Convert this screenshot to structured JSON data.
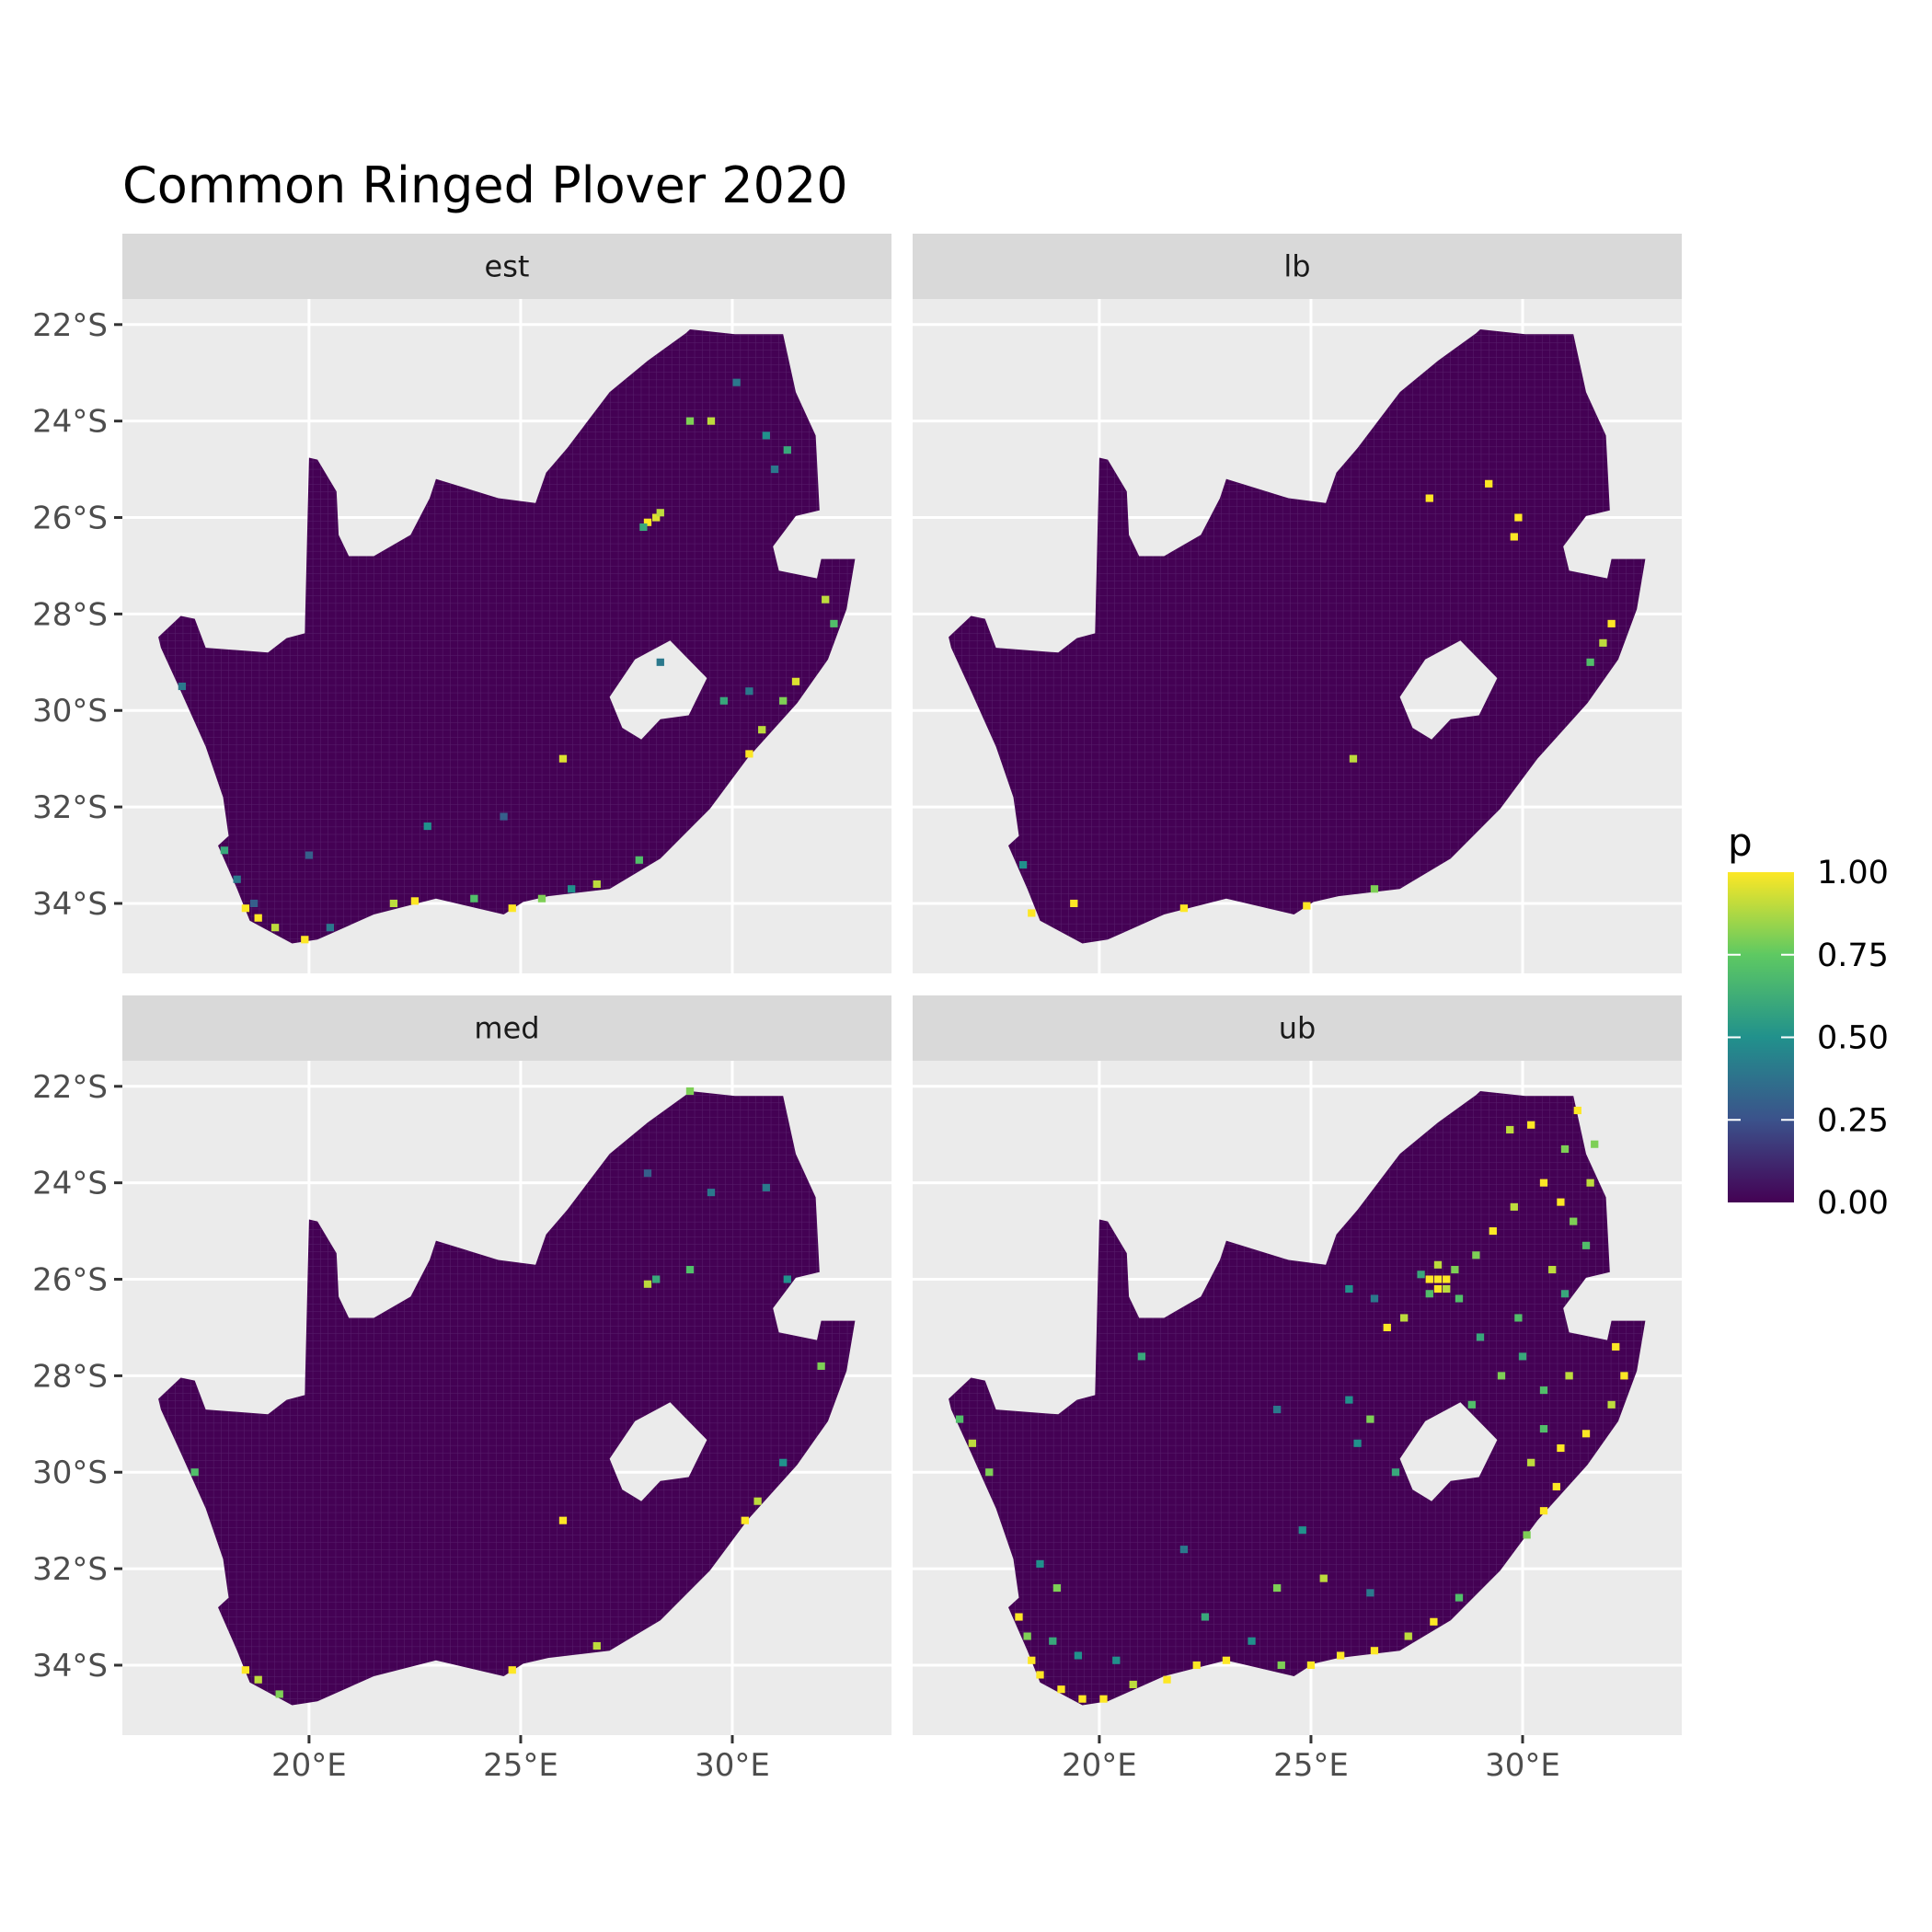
{
  "chart_data": {
    "type": "heatmap",
    "title": "Common Ringed Plover 2020",
    "xlabel": "",
    "ylabel": "",
    "xlim": [
      15.59,
      33.76
    ],
    "ylim": [
      -35.45,
      -21.47
    ],
    "grid": true,
    "x_ticks": [
      {
        "value": 20,
        "label": "20°E"
      },
      {
        "value": 25,
        "label": "25°E"
      },
      {
        "value": 30,
        "label": "30°E"
      }
    ],
    "y_ticks": [
      {
        "value": -22,
        "label": "22°S"
      },
      {
        "value": -24,
        "label": "24°S"
      },
      {
        "value": -26,
        "label": "26°S"
      },
      {
        "value": -28,
        "label": "28°S"
      },
      {
        "value": -30,
        "label": "30°S"
      },
      {
        "value": -32,
        "label": "32°S"
      },
      {
        "value": -34,
        "label": "34°S"
      }
    ],
    "legend": {
      "title": "p",
      "placement": "right",
      "colormap": "viridis",
      "colors": [
        "#440154",
        "#3b528b",
        "#21918c",
        "#5ec962",
        "#fde725"
      ],
      "range": [
        0,
        1
      ],
      "ticks": [
        {
          "value": 1,
          "label": "1.00"
        },
        {
          "value": 0.75,
          "label": "0.75"
        },
        {
          "value": 0.5,
          "label": "0.50"
        },
        {
          "value": 0.25,
          "label": "0.25"
        },
        {
          "value": 0,
          "label": "0.00"
        }
      ]
    },
    "background_value": 0,
    "region_outline": [
      [
        16.44,
        -28.48
      ],
      [
        16.97,
        -28.04
      ],
      [
        17.3,
        -28.1
      ],
      [
        17.56,
        -28.7
      ],
      [
        19.03,
        -28.8
      ],
      [
        19.47,
        -28.5
      ],
      [
        19.9,
        -28.4
      ],
      [
        20.0,
        -24.76
      ],
      [
        20.2,
        -24.8
      ],
      [
        20.65,
        -25.46
      ],
      [
        20.7,
        -26.36
      ],
      [
        20.94,
        -26.8
      ],
      [
        21.53,
        -26.8
      ],
      [
        22.4,
        -26.36
      ],
      [
        22.85,
        -25.6
      ],
      [
        23.0,
        -25.2
      ],
      [
        24.47,
        -25.6
      ],
      [
        25.35,
        -25.7
      ],
      [
        25.6,
        -25.07
      ],
      [
        26.1,
        -24.56
      ],
      [
        27.1,
        -23.4
      ],
      [
        28.0,
        -22.75
      ],
      [
        28.9,
        -22.18
      ],
      [
        29.0,
        -22.1
      ],
      [
        30.06,
        -22.2
      ],
      [
        31.2,
        -22.2
      ],
      [
        31.5,
        -23.4
      ],
      [
        31.97,
        -24.3
      ],
      [
        32.06,
        -25.85
      ],
      [
        31.5,
        -25.97
      ],
      [
        30.96,
        -26.6
      ],
      [
        31.1,
        -27.1
      ],
      [
        32.0,
        -27.26
      ],
      [
        32.1,
        -26.86
      ],
      [
        32.9,
        -26.86
      ],
      [
        32.7,
        -27.9
      ],
      [
        32.26,
        -28.94
      ],
      [
        31.53,
        -29.85
      ],
      [
        30.35,
        -31.0
      ],
      [
        29.47,
        -32.04
      ],
      [
        28.3,
        -33.07
      ],
      [
        27.1,
        -33.7
      ],
      [
        25.65,
        -33.85
      ],
      [
        25.06,
        -33.97
      ],
      [
        24.6,
        -34.23
      ],
      [
        23.0,
        -33.9
      ],
      [
        21.53,
        -34.23
      ],
      [
        20.2,
        -34.75
      ],
      [
        19.6,
        -34.83
      ],
      [
        18.6,
        -34.36
      ],
      [
        18.3,
        -33.7
      ],
      [
        17.85,
        -32.8
      ],
      [
        18.1,
        -32.6
      ],
      [
        17.97,
        -31.8
      ],
      [
        17.56,
        -30.75
      ],
      [
        16.97,
        -29.6
      ],
      [
        16.5,
        -28.7
      ]
    ],
    "region_hole": [
      [
        27.1,
        -29.72
      ],
      [
        27.7,
        -28.94
      ],
      [
        28.53,
        -28.55
      ],
      [
        29.4,
        -29.33
      ],
      [
        28.97,
        -30.1
      ],
      [
        28.3,
        -30.18
      ],
      [
        27.85,
        -30.6
      ],
      [
        27.4,
        -30.36
      ]
    ],
    "panels": [
      {
        "label": "est",
        "cells": [
          [
            28.0,
            -26.1,
            1
          ],
          [
            28.2,
            -26.0,
            0.95
          ],
          [
            27.9,
            -26.2,
            0.6
          ],
          [
            28.3,
            -25.9,
            0.9
          ],
          [
            29.5,
            -24.0,
            0.9
          ],
          [
            30.8,
            -24.3,
            0.5
          ],
          [
            31.3,
            -24.6,
            0.6
          ],
          [
            31.0,
            -25.0,
            0.4
          ],
          [
            30.1,
            -23.2,
            0.4
          ],
          [
            29.0,
            -24.0,
            0.8
          ],
          [
            32.2,
            -27.7,
            0.9
          ],
          [
            32.4,
            -28.2,
            0.7
          ],
          [
            31.5,
            -29.4,
            0.95
          ],
          [
            31.2,
            -29.8,
            0.8
          ],
          [
            30.7,
            -30.4,
            0.9
          ],
          [
            30.4,
            -30.9,
            1
          ],
          [
            18.5,
            -34.1,
            1
          ],
          [
            18.8,
            -34.3,
            1
          ],
          [
            19.2,
            -34.5,
            0.9
          ],
          [
            18.3,
            -33.5,
            0.4
          ],
          [
            18.0,
            -32.9,
            0.6
          ],
          [
            22.0,
            -34.0,
            0.9
          ],
          [
            22.5,
            -33.95,
            1
          ],
          [
            24.8,
            -34.1,
            1
          ],
          [
            25.5,
            -33.9,
            0.8
          ],
          [
            26.8,
            -33.6,
            0.9
          ],
          [
            27.8,
            -33.1,
            0.7
          ],
          [
            26.0,
            -31.0,
            0.95
          ],
          [
            19.9,
            -34.75,
            1
          ],
          [
            20.5,
            -34.5,
            0.4
          ],
          [
            23.9,
            -33.9,
            0.7
          ],
          [
            26.2,
            -33.7,
            0.5
          ],
          [
            18.7,
            -34.0,
            0.3
          ],
          [
            20.0,
            -33.0,
            0.3
          ],
          [
            28.3,
            -29.0,
            0.4
          ],
          [
            29.8,
            -29.8,
            0.6
          ],
          [
            30.4,
            -29.6,
            0.4
          ],
          [
            22.8,
            -32.4,
            0.5
          ],
          [
            24.6,
            -32.2,
            0.3
          ],
          [
            17.0,
            -29.5,
            0.4
          ]
        ]
      },
      {
        "label": "lb",
        "cells": [
          [
            29.2,
            -25.3,
            1
          ],
          [
            27.8,
            -25.6,
            1
          ],
          [
            29.9,
            -26.0,
            1
          ],
          [
            29.8,
            -26.4,
            1
          ],
          [
            32.1,
            -28.2,
            1
          ],
          [
            31.9,
            -28.6,
            0.9
          ],
          [
            31.6,
            -29.0,
            0.7
          ],
          [
            26.0,
            -31.0,
            0.9
          ],
          [
            19.4,
            -34.0,
            1
          ],
          [
            18.4,
            -34.2,
            1
          ],
          [
            22.0,
            -34.1,
            1
          ],
          [
            24.9,
            -34.05,
            1
          ],
          [
            26.5,
            -33.7,
            0.8
          ],
          [
            18.2,
            -33.2,
            0.5
          ]
        ]
      },
      {
        "label": "med",
        "cells": [
          [
            28.0,
            -26.1,
            0.9
          ],
          [
            28.2,
            -26.0,
            0.6
          ],
          [
            29.5,
            -24.2,
            0.4
          ],
          [
            31.3,
            -26.0,
            0.5
          ],
          [
            29.0,
            -25.8,
            0.7
          ],
          [
            32.1,
            -27.8,
            0.8
          ],
          [
            31.2,
            -29.8,
            0.5
          ],
          [
            30.6,
            -30.6,
            0.9
          ],
          [
            30.3,
            -31.0,
            1
          ],
          [
            26.0,
            -31.0,
            1
          ],
          [
            18.5,
            -34.1,
            1
          ],
          [
            18.8,
            -34.3,
            0.9
          ],
          [
            19.3,
            -34.6,
            0.8
          ],
          [
            24.8,
            -34.1,
            1
          ],
          [
            26.8,
            -33.6,
            0.9
          ],
          [
            28.0,
            -23.8,
            0.3
          ],
          [
            29.0,
            -22.1,
            0.8
          ],
          [
            30.8,
            -24.1,
            0.4
          ],
          [
            17.3,
            -30.0,
            0.7
          ]
        ]
      },
      {
        "label": "ub",
        "cells": [
          [
            27.8,
            -26.0,
            1
          ],
          [
            28.0,
            -26.0,
            1
          ],
          [
            28.2,
            -26.0,
            1
          ],
          [
            28.0,
            -26.2,
            1
          ],
          [
            28.2,
            -26.2,
            0.9
          ],
          [
            27.8,
            -26.3,
            0.7
          ],
          [
            28.4,
            -25.8,
            0.8
          ],
          [
            28.0,
            -25.7,
            0.9
          ],
          [
            27.6,
            -25.9,
            0.6
          ],
          [
            28.5,
            -26.4,
            0.7
          ],
          [
            28.9,
            -25.5,
            0.8
          ],
          [
            29.3,
            -25.0,
            1
          ],
          [
            29.8,
            -24.5,
            0.9
          ],
          [
            30.5,
            -24.0,
            1
          ],
          [
            30.9,
            -24.4,
            1
          ],
          [
            31.2,
            -24.8,
            0.8
          ],
          [
            31.5,
            -25.3,
            0.7
          ],
          [
            31.6,
            -24.0,
            0.9
          ],
          [
            31.0,
            -23.3,
            0.8
          ],
          [
            30.2,
            -22.8,
            1
          ],
          [
            29.7,
            -22.9,
            0.9
          ],
          [
            31.3,
            -22.5,
            1
          ],
          [
            31.7,
            -23.2,
            0.8
          ],
          [
            30.7,
            -25.8,
            0.9
          ],
          [
            31.0,
            -26.3,
            0.6
          ],
          [
            29.9,
            -26.8,
            0.7
          ],
          [
            29.0,
            -27.2,
            0.6
          ],
          [
            27.2,
            -26.8,
            0.9
          ],
          [
            26.8,
            -27.0,
            1
          ],
          [
            26.5,
            -26.4,
            0.4
          ],
          [
            25.9,
            -26.2,
            0.5
          ],
          [
            26.4,
            -28.9,
            0.8
          ],
          [
            25.9,
            -28.5,
            0.5
          ],
          [
            24.2,
            -28.7,
            0.4
          ],
          [
            21.0,
            -27.6,
            0.6
          ],
          [
            28.8,
            -28.6,
            0.7
          ],
          [
            29.5,
            -28.0,
            0.8
          ],
          [
            30.0,
            -27.6,
            0.6
          ],
          [
            30.5,
            -28.3,
            0.7
          ],
          [
            31.1,
            -28.0,
            0.9
          ],
          [
            32.2,
            -27.4,
            1
          ],
          [
            32.4,
            -28.0,
            1
          ],
          [
            32.1,
            -28.6,
            0.9
          ],
          [
            31.5,
            -29.2,
            1
          ],
          [
            30.9,
            -29.5,
            1
          ],
          [
            30.5,
            -29.1,
            0.7
          ],
          [
            30.2,
            -29.8,
            0.9
          ],
          [
            30.8,
            -30.3,
            1
          ],
          [
            30.5,
            -30.8,
            1
          ],
          [
            30.1,
            -31.3,
            0.8
          ],
          [
            28.5,
            -32.6,
            0.7
          ],
          [
            27.9,
            -33.1,
            1
          ],
          [
            27.3,
            -33.4,
            0.9
          ],
          [
            26.5,
            -33.7,
            1
          ],
          [
            25.7,
            -33.8,
            1
          ],
          [
            25.0,
            -34.0,
            1
          ],
          [
            24.3,
            -34.0,
            0.8
          ],
          [
            23.0,
            -33.9,
            1
          ],
          [
            22.3,
            -34.0,
            1
          ],
          [
            21.6,
            -34.3,
            1
          ],
          [
            20.8,
            -34.4,
            0.9
          ],
          [
            20.1,
            -34.7,
            1
          ],
          [
            19.6,
            -34.7,
            1
          ],
          [
            19.1,
            -34.5,
            1
          ],
          [
            18.6,
            -34.2,
            1
          ],
          [
            18.4,
            -33.9,
            1
          ],
          [
            18.3,
            -33.4,
            0.8
          ],
          [
            18.1,
            -33.0,
            1
          ],
          [
            18.9,
            -33.5,
            0.6
          ],
          [
            19.5,
            -33.8,
            0.5
          ],
          [
            20.4,
            -33.9,
            0.5
          ],
          [
            19.0,
            -32.4,
            0.8
          ],
          [
            18.6,
            -31.9,
            0.5
          ],
          [
            17.4,
            -30.0,
            0.8
          ],
          [
            17.0,
            -29.4,
            0.9
          ],
          [
            16.7,
            -28.9,
            0.7
          ],
          [
            22.5,
            -33.0,
            0.6
          ],
          [
            24.2,
            -32.4,
            0.8
          ],
          [
            23.6,
            -33.5,
            0.5
          ],
          [
            25.3,
            -32.2,
            0.9
          ],
          [
            26.4,
            -32.5,
            0.4
          ],
          [
            24.8,
            -31.2,
            0.5
          ],
          [
            22.0,
            -31.6,
            0.4
          ],
          [
            27.0,
            -30.0,
            0.6
          ],
          [
            26.1,
            -29.4,
            0.5
          ]
        ]
      }
    ]
  }
}
